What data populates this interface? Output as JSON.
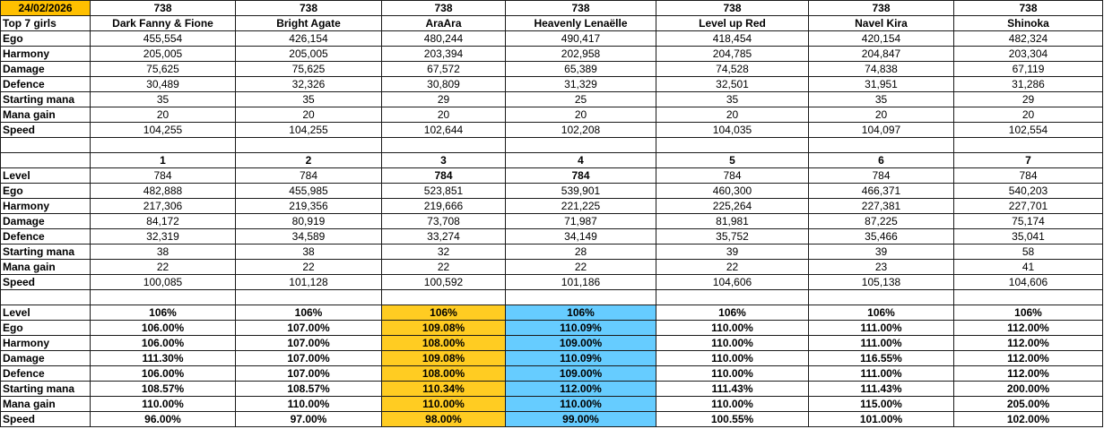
{
  "date": "24/02/2026",
  "header_label": "Top 7 girls",
  "top_levels": [
    "738",
    "738",
    "738",
    "738",
    "738",
    "738",
    "738"
  ],
  "girls": [
    "Dark Fanny & Fione",
    "Bright Agate",
    "AraAra",
    "Heavenly Lenaëlle",
    "Level up Red",
    "Navel Kira",
    "Shinoka"
  ],
  "section1": {
    "rows": [
      {
        "label": "Ego",
        "values": [
          "455,554",
          "426,154",
          "480,244",
          "490,417",
          "418,454",
          "420,154",
          "482,324"
        ]
      },
      {
        "label": "Harmony",
        "values": [
          "205,005",
          "205,005",
          "203,394",
          "202,958",
          "204,785",
          "204,847",
          "203,304"
        ]
      },
      {
        "label": "Damage",
        "values": [
          "75,625",
          "75,625",
          "67,572",
          "65,389",
          "74,528",
          "74,838",
          "67,119"
        ]
      },
      {
        "label": "Defence",
        "values": [
          "30,489",
          "32,326",
          "30,809",
          "31,329",
          "32,501",
          "31,951",
          "31,286"
        ]
      },
      {
        "label": "Starting mana",
        "values": [
          "35",
          "35",
          "29",
          "25",
          "35",
          "35",
          "29"
        ]
      },
      {
        "label": "Mana gain",
        "values": [
          "20",
          "20",
          "20",
          "20",
          "20",
          "20",
          "20"
        ]
      },
      {
        "label": "Speed",
        "values": [
          "104,255",
          "104,255",
          "102,644",
          "102,208",
          "104,035",
          "104,097",
          "102,554"
        ]
      }
    ]
  },
  "section2": {
    "ranks": [
      "1",
      "2",
      "3",
      "4",
      "5",
      "6",
      "7"
    ],
    "rows": [
      {
        "label": "Level",
        "values": [
          "784",
          "784",
          "784",
          "784",
          "784",
          "784",
          "784"
        ]
      },
      {
        "label": "Ego",
        "values": [
          "482,888",
          "455,985",
          "523,851",
          "539,901",
          "460,300",
          "466,371",
          "540,203"
        ]
      },
      {
        "label": "Harmony",
        "values": [
          "217,306",
          "219,356",
          "219,666",
          "221,225",
          "225,264",
          "227,381",
          "227,701"
        ]
      },
      {
        "label": "Damage",
        "values": [
          "84,172",
          "80,919",
          "73,708",
          "71,987",
          "81,981",
          "87,225",
          "75,174"
        ]
      },
      {
        "label": "Defence",
        "values": [
          "32,319",
          "34,589",
          "33,274",
          "34,149",
          "35,752",
          "35,466",
          "35,041"
        ]
      },
      {
        "label": "Starting mana",
        "values": [
          "38",
          "38",
          "32",
          "28",
          "39",
          "39",
          "58"
        ]
      },
      {
        "label": "Mana gain",
        "values": [
          "22",
          "22",
          "22",
          "22",
          "22",
          "23",
          "41"
        ]
      },
      {
        "label": "Speed",
        "values": [
          "100,085",
          "101,128",
          "100,592",
          "101,186",
          "104,606",
          "105,138",
          "104,606"
        ]
      }
    ]
  },
  "section3": {
    "highlight_colors": {
      "col3": "#ffcc22",
      "col4": "#66ccff"
    },
    "rows": [
      {
        "label": "Level",
        "values": [
          "106%",
          "106%",
          "106%",
          "106%",
          "106%",
          "106%",
          "106%"
        ]
      },
      {
        "label": "Ego",
        "values": [
          "106.00%",
          "107.00%",
          "109.08%",
          "110.09%",
          "110.00%",
          "111.00%",
          "112.00%"
        ]
      },
      {
        "label": "Harmony",
        "values": [
          "106.00%",
          "107.00%",
          "108.00%",
          "109.00%",
          "110.00%",
          "111.00%",
          "112.00%"
        ]
      },
      {
        "label": "Damage",
        "values": [
          "111.30%",
          "107.00%",
          "109.08%",
          "110.09%",
          "110.00%",
          "116.55%",
          "112.00%"
        ]
      },
      {
        "label": "Defence",
        "values": [
          "106.00%",
          "107.00%",
          "108.00%",
          "109.00%",
          "110.00%",
          "111.00%",
          "112.00%"
        ]
      },
      {
        "label": "Starting mana",
        "values": [
          "108.57%",
          "108.57%",
          "110.34%",
          "112.00%",
          "111.43%",
          "111.43%",
          "200.00%"
        ]
      },
      {
        "label": "Mana gain",
        "values": [
          "110.00%",
          "110.00%",
          "110.00%",
          "110.00%",
          "110.00%",
          "115.00%",
          "205.00%"
        ]
      },
      {
        "label": "Speed",
        "values": [
          "96.00%",
          "97.00%",
          "98.00%",
          "99.00%",
          "100.55%",
          "101.00%",
          "102.00%"
        ]
      }
    ]
  }
}
